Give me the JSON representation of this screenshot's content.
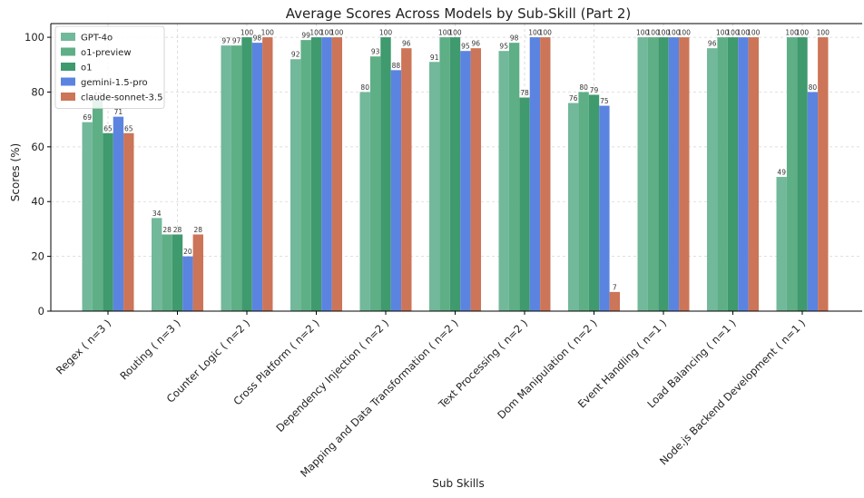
{
  "chart_data": {
    "type": "bar",
    "title": "Average Scores Across Models by Sub-Skill (Part 2)",
    "xlabel": "Sub Skills",
    "ylabel": "Scores (%)",
    "ylim": [
      0,
      105
    ],
    "yticks": [
      0,
      20,
      40,
      60,
      80,
      100
    ],
    "grid": true,
    "legend_position": "top-left",
    "categories": [
      "Regex ( n=3 )",
      "Routing ( n=3 )",
      "Counter Logic ( n=2 )",
      "Cross Platform ( n=2 )",
      "Dependency Injection ( n=2 )",
      "Mapping and Data Transformation ( n=2 )",
      "Text Processing ( n=2 )",
      "Dom Manipulation ( n=2 )",
      "Event Handling ( n=1 )",
      "Load Balancing ( n=1 )",
      "Node.js Backend Development ( n=1 )"
    ],
    "series": [
      {
        "name": "GPT-4o",
        "color": "#72b89a",
        "values": [
          69,
          34,
          97,
          92,
          80,
          91,
          95,
          76,
          100,
          96,
          49
        ]
      },
      {
        "name": "o1-preview",
        "color": "#5eaf86",
        "values": [
          77,
          28,
          97,
          99,
          93,
          100,
          98,
          80,
          100,
          100,
          100
        ]
      },
      {
        "name": "o1",
        "color": "#3f9a6e",
        "values": [
          65,
          28,
          100,
          100,
          100,
          100,
          78,
          79,
          100,
          100,
          100
        ]
      },
      {
        "name": "gemini-1.5-pro",
        "color": "#5b84e0",
        "values": [
          71,
          20,
          98,
          100,
          88,
          95,
          100,
          75,
          100,
          100,
          80
        ]
      },
      {
        "name": "claude-sonnet-3.5",
        "color": "#cc7558",
        "values": [
          65,
          28,
          100,
          100,
          96,
          96,
          100,
          7,
          100,
          100,
          100
        ]
      }
    ]
  }
}
